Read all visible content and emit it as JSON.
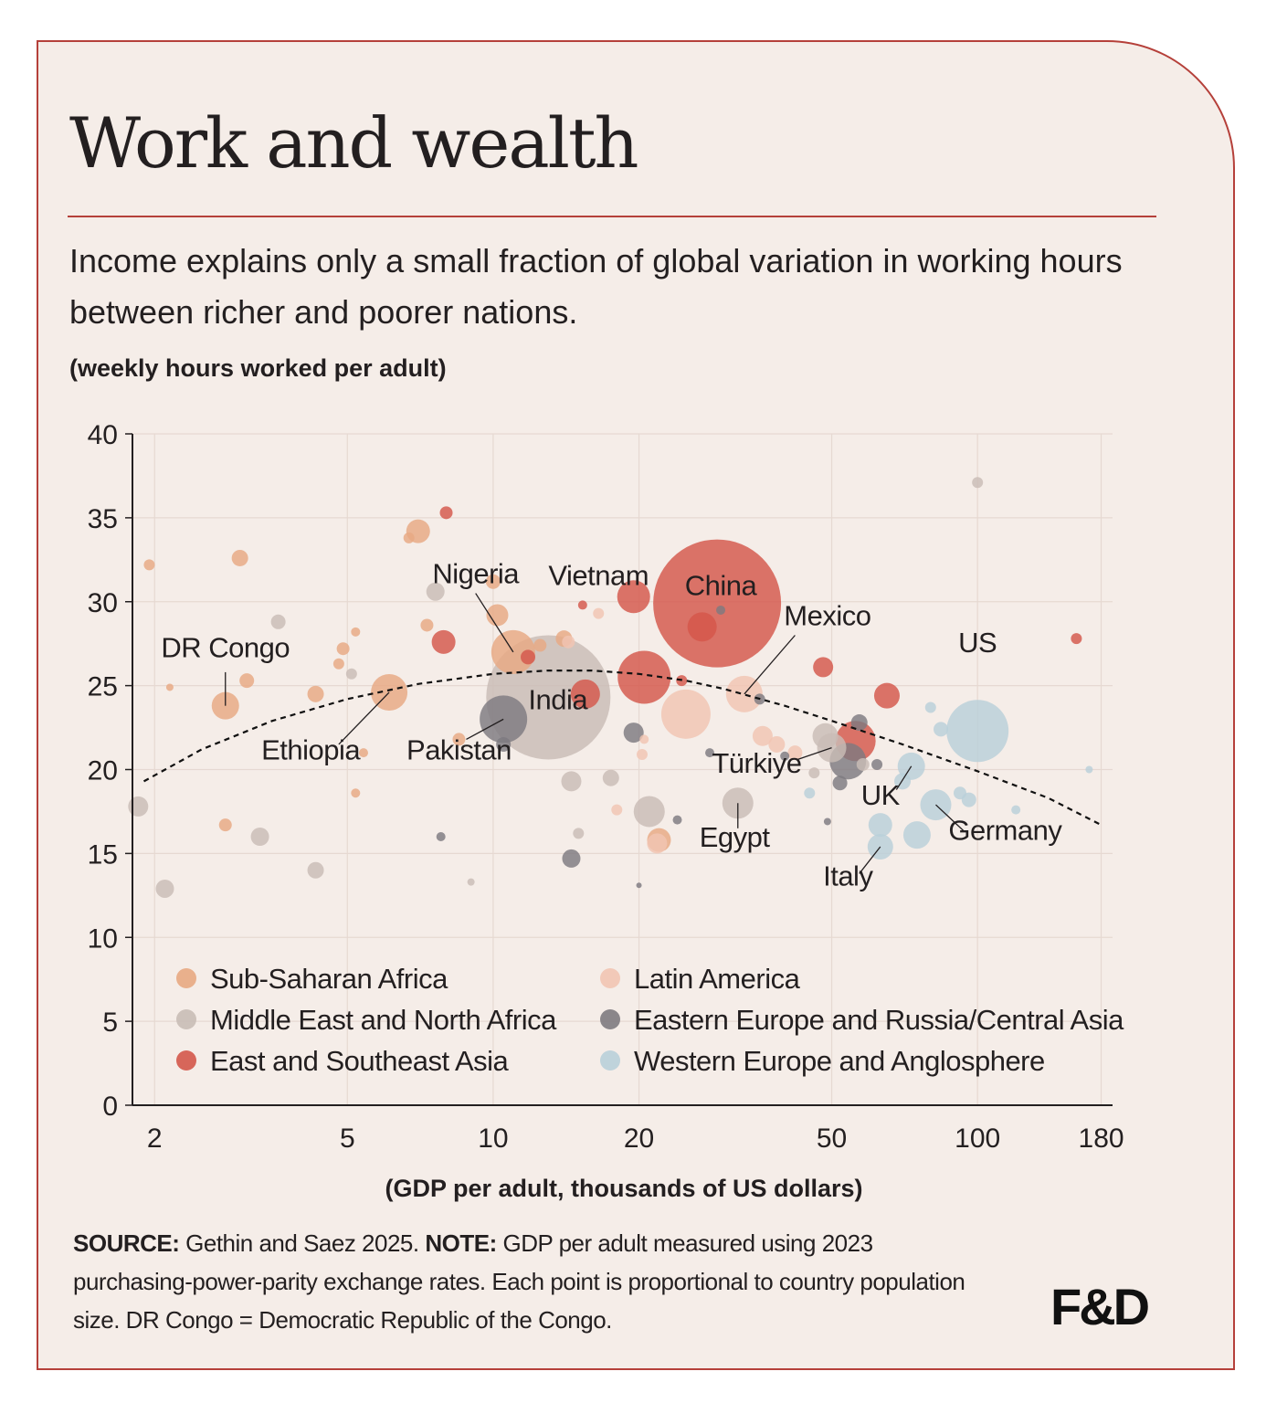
{
  "header": {
    "title": "Work and wealth",
    "subtitle": "Income explains only a small fraction of global variation in working hours between richer and poorer nations.",
    "unit_label": "(weekly hours worked per adult)"
  },
  "footer": {
    "source_label": "SOURCE:",
    "source_text": "Gethin and Saez 2025.",
    "note_label": "NOTE:",
    "note_text": "GDP per adult measured using 2023 purchasing-power-parity exchange rates. Each point is proportional to country population size. DR Congo = Democratic Republic of the Congo.",
    "logo": "F&D"
  },
  "colors": {
    "Sub-Saharan Africa": "#e8a882",
    "Middle East and North Africa": "#c9bcb6",
    "East and Southeast Asia": "#d4574a",
    "Latin America": "#f2c4b2",
    "Eastern Europe and Russia/Central Asia": "#7e7a80",
    "Western Europe and Anglosphere": "#b9cfd9",
    "trend": "#111111",
    "accent": "#b5403a",
    "background": "#f5ede8"
  },
  "chart_data": {
    "type": "scatter",
    "xlabel": "(GDP per adult, thousands of US dollars)",
    "ylabel": "(weekly hours worked per adult)",
    "xscale": "log",
    "xlim": [
      1.8,
      190
    ],
    "ylim": [
      0,
      40
    ],
    "xticks": [
      "2",
      "5",
      "10",
      "20",
      "50",
      "100",
      "180"
    ],
    "yticks": [
      "0",
      "5",
      "10",
      "15",
      "20",
      "25",
      "30",
      "35",
      "40"
    ],
    "grid": true,
    "legend": {
      "placement": "bottom-inside",
      "entries": [
        "Sub-Saharan Africa",
        "Latin America",
        "Middle East and North Africa",
        "Eastern Europe and Russia/Central Asia",
        "East and Southeast Asia",
        "Western Europe and Anglosphere"
      ]
    },
    "trend": {
      "x": [
        1.9,
        2.5,
        3.5,
        5,
        7,
        10,
        13,
        16,
        20,
        25,
        30,
        40,
        50,
        70,
        100,
        140,
        180
      ],
      "y": [
        19.3,
        21.2,
        22.9,
        24.2,
        25.1,
        25.7,
        25.9,
        25.9,
        25.7,
        25.3,
        24.8,
        23.8,
        22.9,
        21.5,
        19.9,
        18.3,
        16.7
      ]
    },
    "points": [
      {
        "label": "India",
        "region": "East and Southeast Asia",
        "x": 13,
        "y": 24.3,
        "r": 68,
        "c": "Middle East and North Africa"
      },
      {
        "label": "China",
        "region": "East and Southeast Asia",
        "x": 29,
        "y": 29.9,
        "r": 70,
        "c": "East and Southeast Asia"
      },
      {
        "label": "US",
        "region": "Western Europe and Anglosphere",
        "x": 100,
        "y": 22.3,
        "r": 34,
        "c": "Western Europe and Anglosphere"
      },
      {
        "label": "Nigeria",
        "region": "Sub-Saharan Africa",
        "x": 11,
        "y": 27,
        "r": 24,
        "c": "Sub-Saharan Africa"
      },
      {
        "label": "Pakistan",
        "region": "Middle East and North Africa",
        "x": 10.5,
        "y": 23,
        "r": 26,
        "c": "Eastern Europe and Russia/Central Asia"
      },
      {
        "label": "Vietnam",
        "region": "East and Southeast Asia",
        "x": 19.5,
        "y": 30.3,
        "r": 18,
        "c": "East and Southeast Asia"
      },
      {
        "label": "DR Congo",
        "region": "Sub-Saharan Africa",
        "x": 2.8,
        "y": 23.8,
        "r": 15,
        "c": "Sub-Saharan Africa"
      },
      {
        "label": "Ethiopia",
        "region": "Sub-Saharan Africa",
        "x": 6.1,
        "y": 24.6,
        "r": 20,
        "c": "Sub-Saharan Africa"
      },
      {
        "label": "Mexico",
        "region": "Latin America",
        "x": 33,
        "y": 24.5,
        "r": 20,
        "c": "Latin America"
      },
      {
        "label": "Egypt",
        "region": "Middle East and North Africa",
        "x": 32,
        "y": 18,
        "r": 17,
        "c": "Middle East and North Africa"
      },
      {
        "label": "Türkiye",
        "region": "Middle East and North Africa",
        "x": 50,
        "y": 21.3,
        "r": 16,
        "c": "Middle East and North Africa"
      },
      {
        "label": "UK",
        "region": "Western Europe and Anglosphere",
        "x": 73,
        "y": 20.2,
        "r": 15,
        "c": "Western Europe and Anglosphere"
      },
      {
        "label": "Germany",
        "region": "Western Europe and Anglosphere",
        "x": 82,
        "y": 17.9,
        "r": 17,
        "c": "Western Europe and Anglosphere"
      },
      {
        "label": "Italy",
        "region": "Western Europe and Anglosphere",
        "x": 63,
        "y": 15.4,
        "r": 14,
        "c": "Western Europe and Anglosphere"
      },
      {
        "x": 20.5,
        "y": 25.5,
        "r": 29,
        "c": "East and Southeast Asia"
      },
      {
        "x": 25,
        "y": 23.3,
        "r": 27,
        "c": "Latin America"
      },
      {
        "x": 15.5,
        "y": 24.5,
        "r": 16,
        "c": "East and Southeast Asia"
      },
      {
        "x": 27,
        "y": 28.5,
        "r": 16,
        "c": "East and Southeast Asia"
      },
      {
        "x": 56,
        "y": 21.7,
        "r": 22,
        "c": "East and Southeast Asia"
      },
      {
        "x": 54,
        "y": 20.5,
        "r": 20,
        "c": "Eastern Europe and Russia/Central Asia"
      },
      {
        "x": 65,
        "y": 24.4,
        "r": 14,
        "c": "East and Southeast Asia"
      },
      {
        "x": 48,
        "y": 26.1,
        "r": 11,
        "c": "East and Southeast Asia"
      },
      {
        "x": 7.9,
        "y": 27.6,
        "r": 13,
        "c": "East and Southeast Asia"
      },
      {
        "x": 7,
        "y": 34.2,
        "r": 13,
        "c": "Sub-Saharan Africa"
      },
      {
        "x": 10.2,
        "y": 29.2,
        "r": 12,
        "c": "Sub-Saharan Africa"
      },
      {
        "x": 7.6,
        "y": 30.6,
        "r": 10,
        "c": "Middle East and North Africa"
      },
      {
        "x": 3,
        "y": 32.6,
        "r": 9,
        "c": "Sub-Saharan Africa"
      },
      {
        "x": 3.6,
        "y": 28.8,
        "r": 8,
        "c": "Middle East and North Africa"
      },
      {
        "x": 1.85,
        "y": 17.8,
        "r": 11,
        "c": "Middle East and North Africa"
      },
      {
        "x": 2.1,
        "y": 12.9,
        "r": 10,
        "c": "Middle East and North Africa"
      },
      {
        "x": 3.3,
        "y": 16,
        "r": 10,
        "c": "Middle East and North Africa"
      },
      {
        "x": 4.3,
        "y": 14,
        "r": 9,
        "c": "Middle East and North Africa"
      },
      {
        "x": 2.8,
        "y": 16.7,
        "r": 7,
        "c": "Sub-Saharan Africa"
      },
      {
        "x": 1.95,
        "y": 32.2,
        "r": 6,
        "c": "Sub-Saharan Africa"
      },
      {
        "x": 8,
        "y": 35.3,
        "r": 7,
        "c": "East and Southeast Asia"
      },
      {
        "x": 10,
        "y": 31.2,
        "r": 8,
        "c": "Sub-Saharan Africa"
      },
      {
        "x": 4.3,
        "y": 24.5,
        "r": 9,
        "c": "Sub-Saharan Africa"
      },
      {
        "x": 3.1,
        "y": 25.3,
        "r": 8,
        "c": "Sub-Saharan Africa"
      },
      {
        "x": 4.9,
        "y": 27.2,
        "r": 7,
        "c": "Sub-Saharan Africa"
      },
      {
        "x": 4.8,
        "y": 26.3,
        "r": 6,
        "c": "Sub-Saharan Africa"
      },
      {
        "x": 5.1,
        "y": 25.7,
        "r": 6,
        "c": "Middle East and North Africa"
      },
      {
        "x": 5.2,
        "y": 28.2,
        "r": 5,
        "c": "Sub-Saharan Africa"
      },
      {
        "x": 7.3,
        "y": 28.6,
        "r": 7,
        "c": "Sub-Saharan Africa"
      },
      {
        "x": 14,
        "y": 27.8,
        "r": 9,
        "c": "Sub-Saharan Africa"
      },
      {
        "x": 14.3,
        "y": 27.6,
        "r": 7,
        "c": "Latin America"
      },
      {
        "x": 16.5,
        "y": 29.3,
        "r": 6,
        "c": "Latin America"
      },
      {
        "x": 15.3,
        "y": 29.8,
        "r": 5,
        "c": "East and Southeast Asia"
      },
      {
        "x": 8.5,
        "y": 21.8,
        "r": 7,
        "c": "Sub-Saharan Africa"
      },
      {
        "x": 10.5,
        "y": 21.5,
        "r": 8,
        "c": "Eastern Europe and Russia/Central Asia"
      },
      {
        "x": 14.5,
        "y": 19.3,
        "r": 11,
        "c": "Middle East and North Africa"
      },
      {
        "x": 17.5,
        "y": 19.5,
        "r": 9,
        "c": "Middle East and North Africa"
      },
      {
        "x": 19.5,
        "y": 22.2,
        "r": 11,
        "c": "Eastern Europe and Russia/Central Asia"
      },
      {
        "x": 21,
        "y": 17.5,
        "r": 17,
        "c": "Middle East and North Africa"
      },
      {
        "x": 22,
        "y": 15.8,
        "r": 13,
        "c": "Sub-Saharan Africa"
      },
      {
        "x": 21.8,
        "y": 15.6,
        "r": 11,
        "c": "Latin America"
      },
      {
        "x": 14.5,
        "y": 14.7,
        "r": 10,
        "c": "Eastern Europe and Russia/Central Asia"
      },
      {
        "x": 15,
        "y": 16.2,
        "r": 6,
        "c": "Middle East and North Africa"
      },
      {
        "x": 18,
        "y": 17.6,
        "r": 6,
        "c": "Latin America"
      },
      {
        "x": 20.5,
        "y": 21.8,
        "r": 5,
        "c": "Latin America"
      },
      {
        "x": 20.3,
        "y": 20.9,
        "r": 6,
        "c": "Latin America"
      },
      {
        "x": 36,
        "y": 22,
        "r": 11,
        "c": "Latin America"
      },
      {
        "x": 38.5,
        "y": 21.5,
        "r": 9,
        "c": "Latin America"
      },
      {
        "x": 35.5,
        "y": 24.2,
        "r": 6,
        "c": "Eastern Europe and Russia/Central Asia"
      },
      {
        "x": 42,
        "y": 21,
        "r": 8,
        "c": "Latin America"
      },
      {
        "x": 48.5,
        "y": 22,
        "r": 14,
        "c": "Middle East and North Africa"
      },
      {
        "x": 52,
        "y": 19.2,
        "r": 8,
        "c": "Eastern Europe and Russia/Central Asia"
      },
      {
        "x": 46,
        "y": 19.8,
        "r": 6,
        "c": "Middle East and North Africa"
      },
      {
        "x": 57,
        "y": 22.8,
        "r": 9,
        "c": "Eastern Europe and Russia/Central Asia"
      },
      {
        "x": 58,
        "y": 20.3,
        "r": 7,
        "c": "Middle East and North Africa"
      },
      {
        "x": 62,
        "y": 20.3,
        "r": 6,
        "c": "Eastern Europe and Russia/Central Asia"
      },
      {
        "x": 63,
        "y": 16.7,
        "r": 13,
        "c": "Western Europe and Anglosphere"
      },
      {
        "x": 75,
        "y": 16.1,
        "r": 15,
        "c": "Western Europe and Anglosphere"
      },
      {
        "x": 70,
        "y": 19.3,
        "r": 9,
        "c": "Western Europe and Anglosphere"
      },
      {
        "x": 84,
        "y": 22.4,
        "r": 8,
        "c": "Western Europe and Anglosphere"
      },
      {
        "x": 92,
        "y": 18.6,
        "r": 7,
        "c": "Western Europe and Anglosphere"
      },
      {
        "x": 96,
        "y": 18.2,
        "r": 8,
        "c": "Western Europe and Anglosphere"
      },
      {
        "x": 80,
        "y": 23.7,
        "r": 6,
        "c": "Western Europe and Anglosphere"
      },
      {
        "x": 45,
        "y": 18.6,
        "r": 6,
        "c": "Western Europe and Anglosphere"
      },
      {
        "x": 100,
        "y": 37.1,
        "r": 6,
        "c": "Middle East and North Africa"
      },
      {
        "x": 160,
        "y": 27.8,
        "r": 6,
        "c": "East and Southeast Asia"
      },
      {
        "x": 120,
        "y": 17.6,
        "r": 5,
        "c": "Western Europe and Anglosphere"
      },
      {
        "x": 170,
        "y": 20,
        "r": 4,
        "c": "Western Europe and Anglosphere"
      },
      {
        "x": 7.8,
        "y": 16,
        "r": 5,
        "c": "Eastern Europe and Russia/Central Asia"
      },
      {
        "x": 9,
        "y": 13.3,
        "r": 4,
        "c": "Middle East and North Africa"
      },
      {
        "x": 24,
        "y": 17,
        "r": 5,
        "c": "Eastern Europe and Russia/Central Asia"
      },
      {
        "x": 28,
        "y": 21,
        "r": 5,
        "c": "Eastern Europe and Russia/Central Asia"
      },
      {
        "x": 29.5,
        "y": 29.5,
        "r": 5,
        "c": "Eastern Europe and Russia/Central Asia"
      },
      {
        "x": 40,
        "y": 20.8,
        "r": 5,
        "c": "Eastern Europe and Russia/Central Asia"
      },
      {
        "x": 49,
        "y": 16.9,
        "r": 4,
        "c": "Eastern Europe and Russia/Central Asia"
      },
      {
        "x": 5.2,
        "y": 18.6,
        "r": 5,
        "c": "Sub-Saharan Africa"
      },
      {
        "x": 5.4,
        "y": 21,
        "r": 5,
        "c": "Sub-Saharan Africa"
      },
      {
        "x": 2.15,
        "y": 24.9,
        "r": 4,
        "c": "Sub-Saharan Africa"
      },
      {
        "x": 6.7,
        "y": 33.8,
        "r": 6,
        "c": "Sub-Saharan Africa"
      },
      {
        "x": 11.8,
        "y": 26.7,
        "r": 8,
        "c": "East and Southeast Asia"
      },
      {
        "x": 12.5,
        "y": 27.4,
        "r": 7,
        "c": "Sub-Saharan Africa"
      },
      {
        "x": 20,
        "y": 13.1,
        "r": 3,
        "c": "Eastern Europe and Russia/Central Asia"
      },
      {
        "x": 24.5,
        "y": 25.3,
        "r": 6,
        "c": "East and Southeast Asia"
      }
    ],
    "annotations": [
      {
        "text": "Nigeria",
        "from": [
          11,
          27
        ],
        "to": [
          9.2,
          30.5
        ],
        "lx": 9.2,
        "ly": 31.1
      },
      {
        "text": "Vietnam",
        "lx": 16.5,
        "ly": 31.0,
        "from": null
      },
      {
        "text": "China",
        "lx": 29.5,
        "ly": 30.4,
        "from": null
      },
      {
        "text": "Mexico",
        "from": [
          33,
          24.5
        ],
        "to": [
          42,
          28
        ],
        "lx": 49,
        "ly": 28.6
      },
      {
        "text": "US",
        "lx": 100,
        "ly": 27.0,
        "from": null
      },
      {
        "text": "DR Congo",
        "from": [
          2.8,
          23.8
        ],
        "to": [
          2.8,
          25.8
        ],
        "lx": 2.8,
        "ly": 26.7
      },
      {
        "text": "India",
        "lx": 13.6,
        "ly": 23.6,
        "from": null
      },
      {
        "text": "Ethiopia",
        "from": [
          6.1,
          24.6
        ],
        "to": [
          4.8,
          21.5
        ],
        "lx": 4.2,
        "ly": 20.6
      },
      {
        "text": "Pakistan",
        "from": [
          10.5,
          23
        ],
        "to": [
          8.8,
          21.8
        ],
        "lx": 8.5,
        "ly": 20.6
      },
      {
        "text": "Türkiye",
        "from": [
          50,
          21.3
        ],
        "to": [
          42.5,
          20.6
        ],
        "lx": 35,
        "ly": 19.8
      },
      {
        "text": "UK",
        "from": [
          73,
          20.2
        ],
        "to": [
          68,
          18.8
        ],
        "lx": 63,
        "ly": 17.9
      },
      {
        "text": "Germany",
        "from": [
          82,
          17.9
        ],
        "to": [
          94,
          16.3
        ],
        "lx": 114,
        "ly": 15.8
      },
      {
        "text": "Egypt",
        "from": [
          32,
          18
        ],
        "to": [
          32,
          16.5
        ],
        "lx": 31.5,
        "ly": 15.4
      },
      {
        "text": "Italy",
        "from": [
          63,
          15.4
        ],
        "to": [
          57,
          13.8
        ],
        "lx": 54,
        "ly": 13.1
      }
    ]
  }
}
